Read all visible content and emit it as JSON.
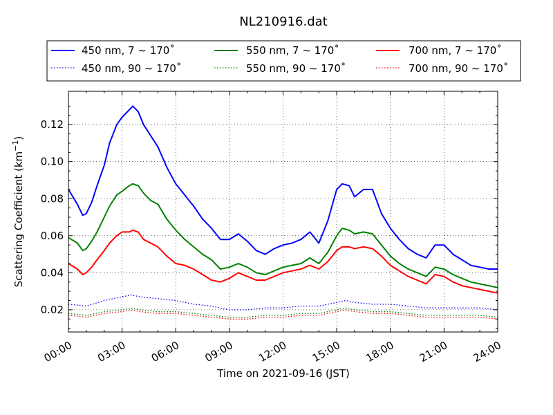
{
  "chart_data": {
    "type": "line",
    "title": "NL210916.dat",
    "xlabel": "Time on 2021-09-16 (JST)",
    "ylabel_prefix": "Scattering Coefficient (km",
    "ylabel_sup": "−1",
    "ylabel_suffix": ")",
    "x_unit": "hours",
    "xlim": [
      0,
      24
    ],
    "ylim": [
      0.008,
      0.138
    ],
    "grid": true,
    "legend_position": "top",
    "x_ticks": [
      {
        "value": 0,
        "label": "00:00"
      },
      {
        "value": 3,
        "label": "03:00"
      },
      {
        "value": 6,
        "label": "06:00"
      },
      {
        "value": 9,
        "label": "09:00"
      },
      {
        "value": 12,
        "label": "12:00"
      },
      {
        "value": 15,
        "label": "15:00"
      },
      {
        "value": 18,
        "label": "18:00"
      },
      {
        "value": 21,
        "label": "21:00"
      },
      {
        "value": 24,
        "label": "24:00"
      }
    ],
    "y_ticks": [
      {
        "value": 0.02,
        "label": "0.02"
      },
      {
        "value": 0.04,
        "label": "0.04"
      },
      {
        "value": 0.06,
        "label": "0.06"
      },
      {
        "value": 0.08,
        "label": "0.08"
      },
      {
        "value": 0.1,
        "label": "0.10"
      },
      {
        "value": 0.12,
        "label": "0.12"
      }
    ],
    "series": [
      {
        "name": "450 nm, 7 ∼ 170˚",
        "color": "#0000ff",
        "style": "solid",
        "x": [
          0,
          0.5,
          0.8,
          1,
          1.3,
          1.6,
          2,
          2.3,
          2.7,
          3,
          3.4,
          3.6,
          3.9,
          4.2,
          4.6,
          5,
          5.5,
          6,
          6.5,
          7,
          7.5,
          8,
          8.5,
          9,
          9.5,
          10,
          10.5,
          11,
          11.5,
          12,
          12.5,
          13,
          13.5,
          14,
          14.5,
          15,
          15.3,
          15.7,
          16,
          16.5,
          17,
          17.5,
          18,
          18.5,
          19,
          19.5,
          20,
          20.5,
          21,
          21.5,
          22,
          22.5,
          23,
          23.5,
          24
        ],
        "y": [
          0.085,
          0.077,
          0.071,
          0.072,
          0.078,
          0.087,
          0.098,
          0.11,
          0.12,
          0.124,
          0.128,
          0.13,
          0.127,
          0.12,
          0.114,
          0.108,
          0.097,
          0.088,
          0.082,
          0.076,
          0.069,
          0.064,
          0.058,
          0.058,
          0.061,
          0.057,
          0.052,
          0.05,
          0.053,
          0.055,
          0.056,
          0.058,
          0.062,
          0.056,
          0.068,
          0.085,
          0.088,
          0.087,
          0.081,
          0.085,
          0.085,
          0.072,
          0.064,
          0.058,
          0.053,
          0.05,
          0.048,
          0.055,
          0.055,
          0.05,
          0.047,
          0.044,
          0.043,
          0.042,
          0.042
        ]
      },
      {
        "name": "450 nm, 90 ∼ 170˚",
        "color": "#0000ff",
        "style": "dotted",
        "x": [
          0,
          1,
          2,
          3,
          3.5,
          4,
          5,
          6,
          7,
          8,
          9,
          10,
          11,
          12,
          13,
          14,
          15,
          15.5,
          16,
          17,
          18,
          19,
          20,
          21,
          22,
          23,
          24
        ],
        "y": [
          0.023,
          0.022,
          0.025,
          0.027,
          0.028,
          0.027,
          0.026,
          0.025,
          0.023,
          0.022,
          0.02,
          0.02,
          0.021,
          0.021,
          0.022,
          0.022,
          0.024,
          0.025,
          0.024,
          0.023,
          0.023,
          0.022,
          0.021,
          0.021,
          0.021,
          0.021,
          0.02
        ]
      },
      {
        "name": "550 nm, 7 ∼ 170˚",
        "color": "#008000",
        "style": "solid",
        "x": [
          0,
          0.5,
          0.8,
          1,
          1.3,
          1.6,
          2,
          2.3,
          2.7,
          3,
          3.4,
          3.6,
          3.9,
          4.2,
          4.6,
          5,
          5.5,
          6,
          6.5,
          7,
          7.5,
          8,
          8.5,
          9,
          9.5,
          10,
          10.5,
          11,
          11.5,
          12,
          12.5,
          13,
          13.5,
          14,
          14.5,
          15,
          15.3,
          15.7,
          16,
          16.5,
          17,
          17.5,
          18,
          18.5,
          19,
          19.5,
          20,
          20.5,
          21,
          21.5,
          22,
          22.5,
          23,
          23.5,
          24
        ],
        "y": [
          0.059,
          0.056,
          0.052,
          0.053,
          0.057,
          0.062,
          0.07,
          0.076,
          0.082,
          0.084,
          0.087,
          0.088,
          0.087,
          0.083,
          0.079,
          0.077,
          0.069,
          0.063,
          0.058,
          0.054,
          0.05,
          0.047,
          0.042,
          0.043,
          0.045,
          0.043,
          0.04,
          0.039,
          0.041,
          0.043,
          0.044,
          0.045,
          0.048,
          0.045,
          0.051,
          0.06,
          0.064,
          0.063,
          0.061,
          0.062,
          0.061,
          0.055,
          0.049,
          0.045,
          0.042,
          0.04,
          0.038,
          0.043,
          0.042,
          0.039,
          0.037,
          0.035,
          0.034,
          0.033,
          0.032
        ]
      },
      {
        "name": "550 nm, 90 ∼ 170˚",
        "color": "#008000",
        "style": "dotted",
        "x": [
          0,
          1,
          2,
          3,
          3.5,
          4,
          5,
          6,
          7,
          8,
          9,
          10,
          11,
          12,
          13,
          14,
          15,
          15.5,
          16,
          17,
          18,
          19,
          20,
          21,
          22,
          23,
          24
        ],
        "y": [
          0.018,
          0.017,
          0.019,
          0.02,
          0.021,
          0.02,
          0.019,
          0.019,
          0.018,
          0.017,
          0.016,
          0.016,
          0.017,
          0.017,
          0.018,
          0.018,
          0.02,
          0.021,
          0.02,
          0.019,
          0.019,
          0.018,
          0.017,
          0.017,
          0.017,
          0.017,
          0.016
        ]
      },
      {
        "name": "700 nm, 7 ∼ 170˚",
        "color": "#ff0000",
        "style": "solid",
        "x": [
          0,
          0.5,
          0.8,
          1,
          1.3,
          1.6,
          2,
          2.3,
          2.7,
          3,
          3.4,
          3.6,
          3.9,
          4.2,
          4.6,
          5,
          5.5,
          6,
          6.5,
          7,
          7.5,
          8,
          8.5,
          9,
          9.5,
          10,
          10.5,
          11,
          11.5,
          12,
          12.5,
          13,
          13.5,
          14,
          14.5,
          15,
          15.3,
          15.7,
          16,
          16.5,
          17,
          17.5,
          18,
          18.5,
          19,
          19.5,
          20,
          20.5,
          21,
          21.5,
          22,
          22.5,
          23,
          23.5,
          24
        ],
        "y": [
          0.045,
          0.042,
          0.039,
          0.04,
          0.043,
          0.047,
          0.052,
          0.056,
          0.06,
          0.062,
          0.062,
          0.063,
          0.062,
          0.058,
          0.056,
          0.054,
          0.049,
          0.045,
          0.044,
          0.042,
          0.039,
          0.036,
          0.035,
          0.037,
          0.04,
          0.038,
          0.036,
          0.036,
          0.038,
          0.04,
          0.041,
          0.042,
          0.044,
          0.042,
          0.046,
          0.052,
          0.054,
          0.054,
          0.053,
          0.054,
          0.053,
          0.049,
          0.044,
          0.041,
          0.038,
          0.036,
          0.034,
          0.039,
          0.038,
          0.035,
          0.033,
          0.032,
          0.031,
          0.03,
          0.029
        ]
      },
      {
        "name": "700 nm, 90 ∼ 170˚",
        "color": "#ff0000",
        "style": "dotted",
        "x": [
          0,
          1,
          2,
          3,
          3.5,
          4,
          5,
          6,
          7,
          8,
          9,
          10,
          11,
          12,
          13,
          14,
          15,
          15.5,
          16,
          17,
          18,
          19,
          20,
          21,
          22,
          23,
          24
        ],
        "y": [
          0.017,
          0.016,
          0.018,
          0.019,
          0.02,
          0.019,
          0.018,
          0.018,
          0.017,
          0.016,
          0.015,
          0.015,
          0.016,
          0.016,
          0.017,
          0.017,
          0.019,
          0.02,
          0.019,
          0.018,
          0.018,
          0.017,
          0.016,
          0.016,
          0.016,
          0.016,
          0.015
        ]
      }
    ]
  }
}
